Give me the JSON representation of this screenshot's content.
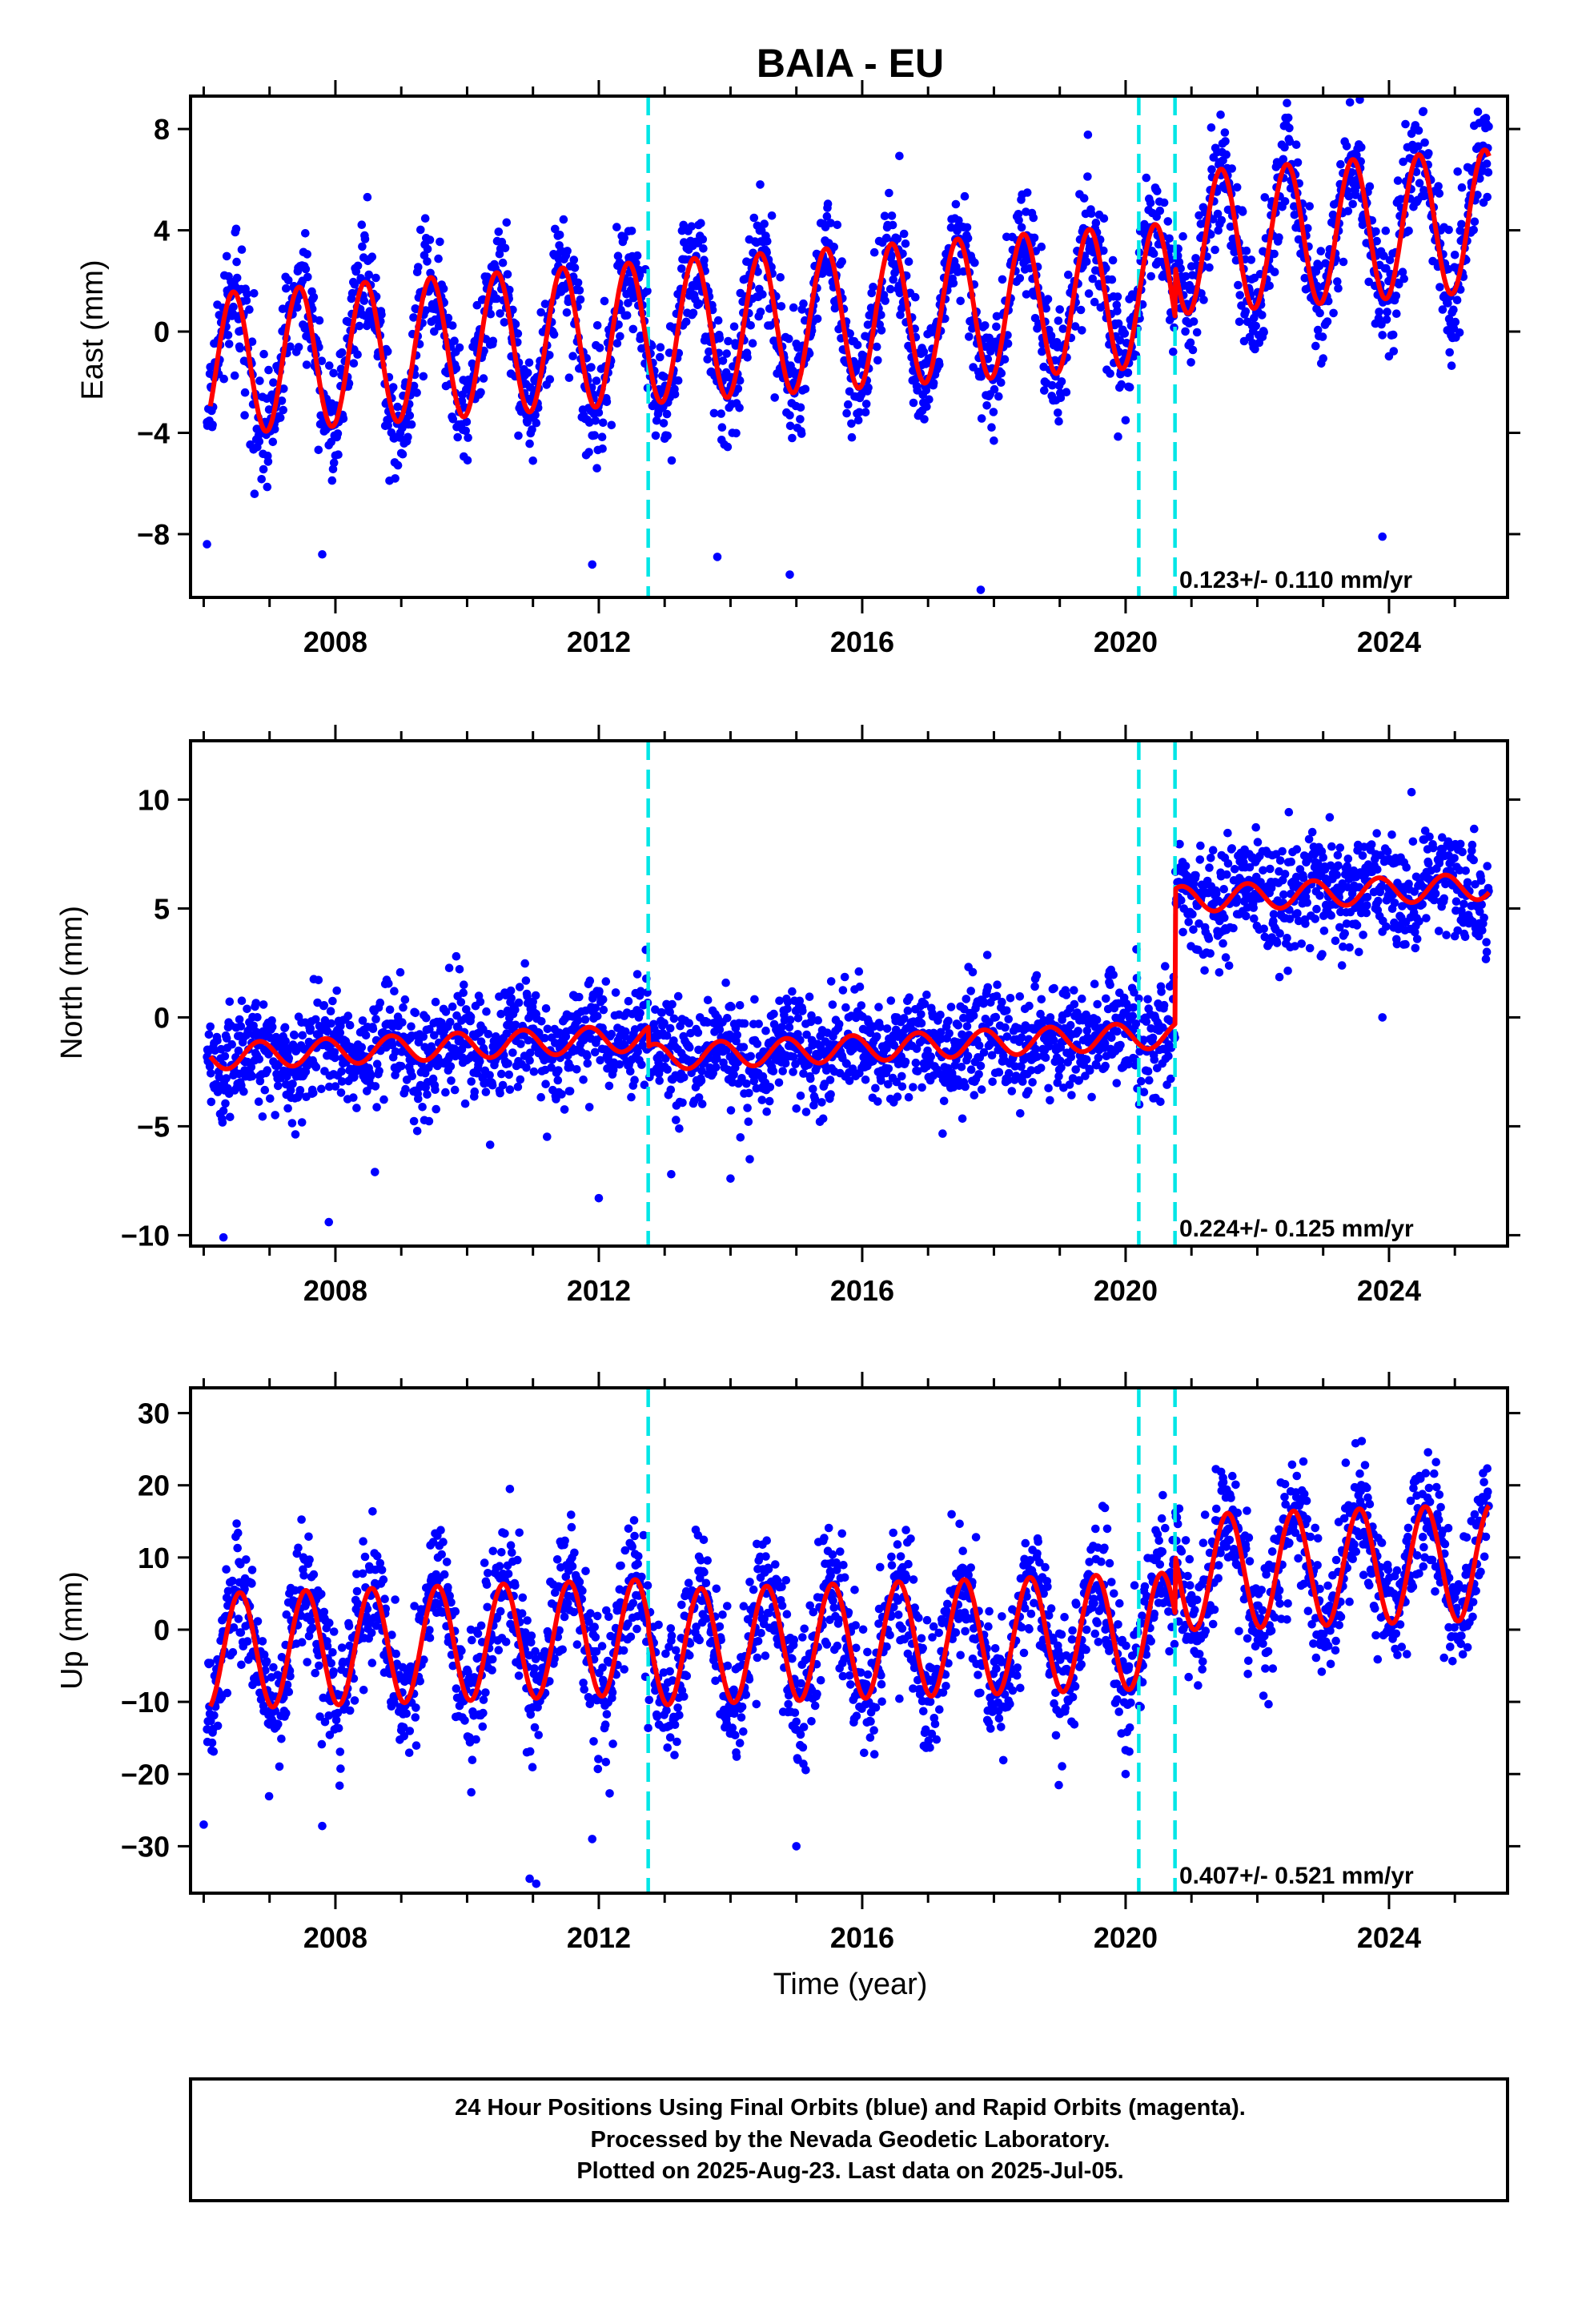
{
  "page": {
    "title": "BAIA - EU"
  },
  "colors": {
    "final_orbits": "#0000ff",
    "model": "#ff0000",
    "breaks": "#00e6e6",
    "frame": "#000000"
  },
  "chart_data": [
    {
      "type": "scatter",
      "component": "East",
      "ylabel": "East (mm)",
      "xlim": [
        2005.8,
        2025.8
      ],
      "ylim": [
        -10.5,
        9.3
      ],
      "yticks": [
        8,
        4,
        0,
        -4,
        -8
      ],
      "ytick_labels": [
        "8",
        "4",
        "0",
        "−4",
        "−8"
      ],
      "xticks": [
        2008,
        2012,
        2016,
        2020,
        2024
      ],
      "xtick_labels": [
        "2008",
        "2012",
        "2016",
        "2020",
        "2024"
      ],
      "xlabel": "",
      "break_lines": [
        2012.75,
        2020.2,
        2020.75
      ],
      "rate_text": "0.123+/- 0.110 mm/yr",
      "model": {
        "start": 2006.1,
        "end": 2025.52,
        "trend_start": -1.3,
        "trend_slope": 0.19,
        "amplitude": 2.8,
        "peak_phase": 0.45,
        "steps": [
          {
            "at": 2020.75,
            "size": 2.0
          }
        ]
      },
      "scatter": {
        "sigma": 1.15,
        "outliers": [
          [
            2006.05,
            -8.4
          ],
          [
            2007.8,
            -8.8
          ],
          [
            2011.9,
            -9.2
          ],
          [
            2013.8,
            -8.9
          ],
          [
            2014.9,
            -9.6
          ],
          [
            2017.8,
            -10.2
          ],
          [
            2023.9,
            -8.1
          ]
        ]
      }
    },
    {
      "type": "scatter",
      "component": "North",
      "ylabel": "North (mm)",
      "xlim": [
        2005.8,
        2025.8
      ],
      "ylim": [
        -10.5,
        12.7
      ],
      "yticks": [
        10,
        5,
        0,
        -5,
        -10
      ],
      "ytick_labels": [
        "10",
        "5",
        "0",
        "−5",
        "−10"
      ],
      "xticks": [
        2008,
        2012,
        2016,
        2020,
        2024
      ],
      "xtick_labels": [
        "2008",
        "2012",
        "2016",
        "2020",
        "2024"
      ],
      "xlabel": "",
      "break_lines": [
        2012.75,
        2020.2,
        2020.75
      ],
      "rate_text": "0.224+/- 0.125 mm/yr",
      "model": {
        "start": 2006.1,
        "end": 2025.52,
        "trend_start": -1.8,
        "trend_slope": 0.13,
        "amplitude": 0.6,
        "peak_phase": 0.85,
        "steps": [
          {
            "at": 2012.75,
            "size": -0.9
          },
          {
            "at": 2020.75,
            "size": 6.2
          }
        ]
      },
      "scatter": {
        "sigma": 1.25,
        "outliers": [
          [
            2006.3,
            -10.1
          ],
          [
            2007.9,
            -9.4
          ],
          [
            2008.6,
            -7.1
          ],
          [
            2012.0,
            -8.3
          ],
          [
            2013.1,
            -7.2
          ],
          [
            2014.0,
            -7.4
          ],
          [
            2023.9,
            0.0
          ]
        ]
      }
    },
    {
      "type": "scatter",
      "component": "Up",
      "ylabel": "Up (mm)",
      "xlim": [
        2005.8,
        2025.8
      ],
      "ylim": [
        -36.5,
        33.5
      ],
      "yticks": [
        30,
        20,
        10,
        0,
        -10,
        -20,
        -30
      ],
      "ytick_labels": [
        "30",
        "20",
        "10",
        "0",
        "−10",
        "−20",
        "−30"
      ],
      "xticks": [
        2008,
        2012,
        2016,
        2020,
        2024
      ],
      "xtick_labels": [
        "2008",
        "2012",
        "2016",
        "2020",
        "2024"
      ],
      "xlabel": "Time (year)",
      "break_lines": [
        2012.75,
        2020.2,
        2020.75
      ],
      "rate_text": "0.407+/- 0.521 mm/yr",
      "model": {
        "start": 2006.1,
        "end": 2025.52,
        "trend_start": -3.0,
        "trend_slope": 0.3,
        "amplitude": 8.0,
        "peak_phase": 0.55,
        "steps": [
          {
            "at": 2012.75,
            "size": -1.5
          },
          {
            "at": 2020.75,
            "size": 8.0
          }
        ]
      },
      "scatter": {
        "sigma": 4.5,
        "outliers": [
          [
            2006.0,
            -27.0
          ],
          [
            2007.8,
            -27.2
          ],
          [
            2010.95,
            -34.5
          ],
          [
            2011.05,
            -35.2
          ],
          [
            2011.9,
            -29.0
          ],
          [
            2015.0,
            -30.0
          ],
          [
            2020.0,
            -20.0
          ]
        ]
      }
    }
  ],
  "footer": {
    "line1": "24 Hour Positions Using Final Orbits (blue) and Rapid Orbits (magenta).",
    "line2": "Processed by the Nevada Geodetic Laboratory.",
    "line3": "Plotted on 2025-Aug-23. Last data on 2025-Jul-05."
  }
}
